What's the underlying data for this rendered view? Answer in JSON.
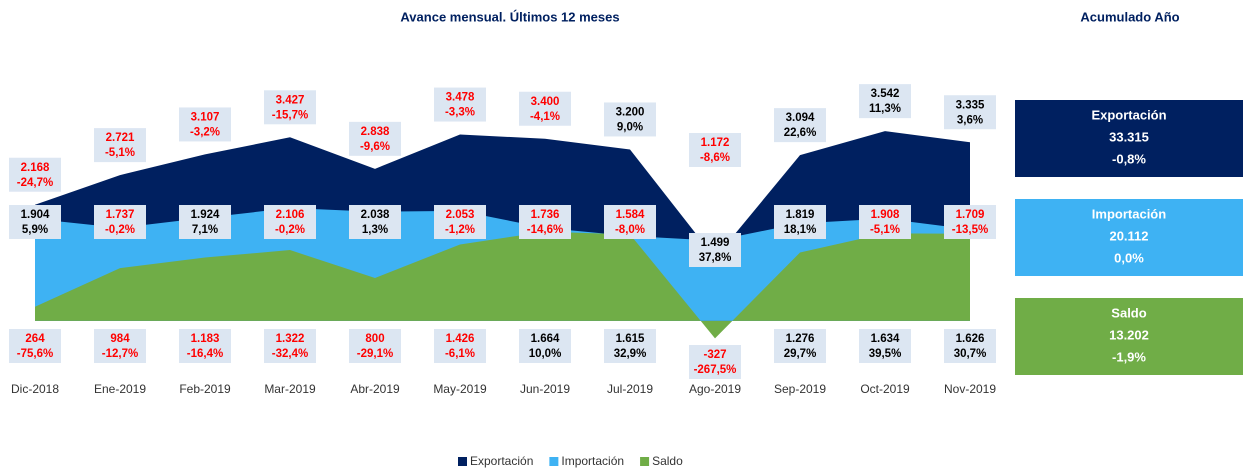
{
  "chart_data": {
    "type": "area",
    "title": "Avance mensual. Últimos 12 meses",
    "categories": [
      "Dic-2018",
      "Ene-2019",
      "Feb-2019",
      "Mar-2019",
      "Abr-2019",
      "May-2019",
      "Jun-2019",
      "Jul-2019",
      "Ago-2019",
      "Sep-2019",
      "Oct-2019",
      "Nov-2019"
    ],
    "ylim": [
      -600,
      4870
    ],
    "legend": "bottom",
    "series": [
      {
        "name": "Exportación",
        "color": "#002060",
        "values": [
          2168,
          2721,
          3107,
          3427,
          2838,
          3478,
          3400,
          3200,
          1172,
          3094,
          3542,
          3335
        ],
        "value_labels": [
          "2.168",
          "2.721",
          "3.107",
          "3.427",
          "2.838",
          "3.478",
          "3.400",
          "3.200",
          "1.172",
          "3.094",
          "3.542",
          "3.335"
        ],
        "change_labels": [
          "-24,7%",
          "-5,1%",
          "-3,2%",
          "-15,7%",
          "-9,6%",
          "-3,3%",
          "-4,1%",
          "9,0%",
          "-8,6%",
          "22,6%",
          "11,3%",
          "3,6%"
        ]
      },
      {
        "name": "Importación",
        "color": "#3eb2f3",
        "values": [
          1904,
          1737,
          1924,
          2106,
          2038,
          2053,
          1736,
          1584,
          1499,
          1819,
          1908,
          1709
        ],
        "value_labels": [
          "1.904",
          "1.737",
          "1.924",
          "2.106",
          "2.038",
          "2.053",
          "1.736",
          "1.584",
          "1.499",
          "1.819",
          "1.908",
          "1.709"
        ],
        "change_labels": [
          "5,9%",
          "-0,2%",
          "7,1%",
          "-0,2%",
          "1,3%",
          "-1,2%",
          "-14,6%",
          "-8,0%",
          "37,8%",
          "18,1%",
          "-5,1%",
          "-13,5%"
        ]
      },
      {
        "name": "Saldo",
        "color": "#70ad47",
        "values": [
          264,
          984,
          1183,
          1322,
          800,
          1426,
          1664,
          1615,
          -327,
          1276,
          1634,
          1626
        ],
        "value_labels": [
          "264",
          "984",
          "1.183",
          "1.322",
          "800",
          "1.426",
          "1.664",
          "1.615",
          "-327",
          "1.276",
          "1.634",
          "1.626"
        ],
        "change_labels": [
          "-75,6%",
          "-12,7%",
          "-16,4%",
          "-32,4%",
          "-29,1%",
          "-6,1%",
          "10,0%",
          "32,9%",
          "-267,5%",
          "29,7%",
          "39,5%",
          "30,7%"
        ]
      }
    ]
  },
  "summary": {
    "title": "Acumulado Año",
    "items": [
      {
        "name": "Exportación",
        "value": "33.315",
        "change": "-0,8%",
        "color": "#002060"
      },
      {
        "name": "Importación",
        "value": "20.112",
        "change": "0,0%",
        "color": "#3eb2f3"
      },
      {
        "name": "Saldo",
        "value": "13.202",
        "change": "-1,9%",
        "color": "#70ad47"
      }
    ]
  }
}
